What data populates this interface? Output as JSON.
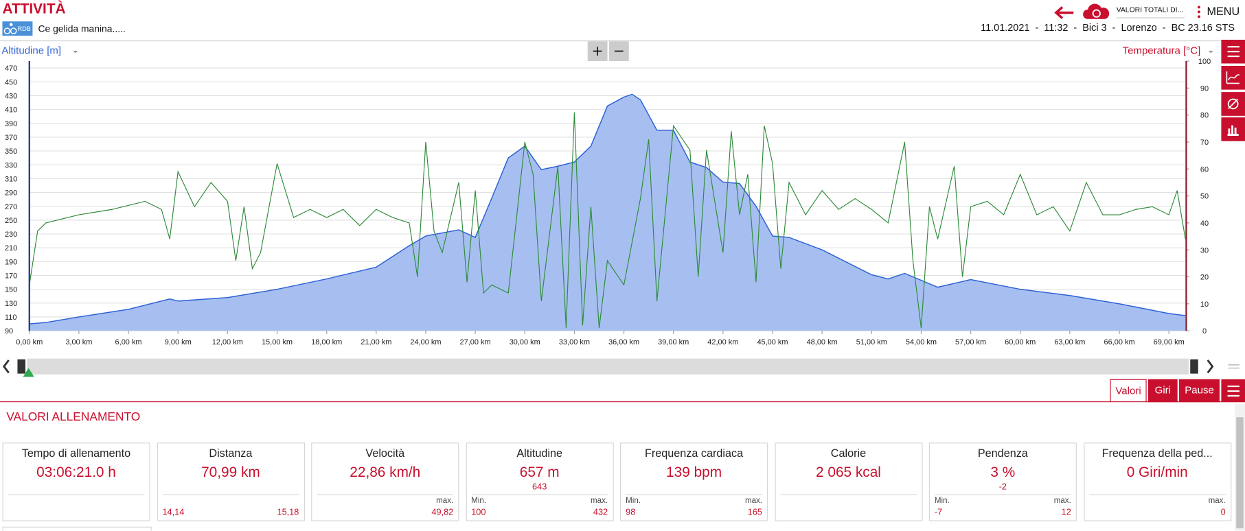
{
  "header": {
    "title": "ATTIVITÀ",
    "badge": "RDB",
    "activity": "Ce gelida manina.....",
    "totals_button": "VALORI TOTALI DI...",
    "menu": "MENU",
    "info": "11.01.2021  -  11:32  -  Bici 3  -  Lorenzo  -  BC 23.16 STS"
  },
  "chart_data": {
    "type": "area",
    "xlim": [
      0,
      70.05
    ],
    "xticks": [
      {
        "value": 0,
        "label": "0,00 km"
      },
      {
        "value": 3,
        "label": "3,00 km"
      },
      {
        "value": 6,
        "label": "6,00 km"
      },
      {
        "value": 9,
        "label": "9,00 km"
      },
      {
        "value": 12,
        "label": "12,00 km"
      },
      {
        "value": 15,
        "label": "15,00 km"
      },
      {
        "value": 18,
        "label": "18,00 km"
      },
      {
        "value": 21,
        "label": "21,00 km"
      },
      {
        "value": 24,
        "label": "24,00 km"
      },
      {
        "value": 27,
        "label": "27,00 km"
      },
      {
        "value": 30,
        "label": "30,00 km"
      },
      {
        "value": 33,
        "label": "33,00 km"
      },
      {
        "value": 36,
        "label": "36,00 km"
      },
      {
        "value": 39,
        "label": "39,00 km"
      },
      {
        "value": 42,
        "label": "42,00 km"
      },
      {
        "value": 45,
        "label": "45,00 km"
      },
      {
        "value": 48,
        "label": "48,00 km"
      },
      {
        "value": 51,
        "label": "51,00 km"
      },
      {
        "value": 54,
        "label": "54,00 km"
      },
      {
        "value": 57,
        "label": "57,00 km"
      },
      {
        "value": 60,
        "label": "60,00 km"
      },
      {
        "value": 63,
        "label": "63,00 km"
      },
      {
        "value": 66,
        "label": "66,00 km"
      },
      {
        "value": 69,
        "label": "69,00 km"
      }
    ],
    "ylim": [
      90,
      480
    ],
    "yticks": [
      90,
      110,
      130,
      150,
      170,
      190,
      210,
      230,
      250,
      270,
      290,
      310,
      330,
      350,
      370,
      390,
      410,
      430,
      450,
      470
    ],
    "y2lim": [
      0,
      100
    ],
    "y2ticks": [
      0,
      10,
      20,
      30,
      40,
      50,
      60,
      70,
      80,
      90,
      100
    ],
    "grid": true,
    "series": [
      {
        "name": "Altitudine [m]",
        "type": "area",
        "color": "#2f62d6",
        "fill": "#a7bff0",
        "x": [
          0,
          1,
          3,
          6,
          8.5,
          9,
          12,
          15,
          18,
          21,
          23,
          24,
          26,
          27,
          28,
          29,
          30,
          31,
          32,
          33,
          34,
          35,
          36,
          36.5,
          37,
          38,
          39,
          40,
          41,
          42,
          43,
          44,
          45,
          46,
          48,
          51,
          52,
          53,
          55,
          57,
          60,
          63,
          66,
          69,
          70
        ],
        "values": [
          100,
          102,
          110,
          121,
          136,
          133,
          138,
          150,
          165,
          182,
          213,
          227,
          236,
          225,
          282,
          340,
          357,
          323,
          328,
          334,
          357,
          415,
          428,
          432,
          424,
          380,
          380,
          334,
          326,
          305,
          303,
          270,
          227,
          225,
          207,
          171,
          165,
          173,
          153,
          164,
          150,
          141,
          129,
          115,
          112
        ]
      },
      {
        "name": "Temperatura [°C]",
        "type": "line",
        "axis": "y2",
        "color": "#2e8b3a",
        "x": [
          0,
          0.5,
          1,
          3,
          5,
          7,
          8,
          8.5,
          9,
          10,
          11,
          12,
          12.5,
          13,
          13.5,
          14,
          15,
          16,
          17,
          18,
          19,
          20,
          21,
          22,
          23,
          23.5,
          24,
          24.5,
          25,
          26,
          26.5,
          27,
          27.5,
          28,
          29,
          30,
          30.5,
          31,
          32,
          32.5,
          33,
          33.5,
          34,
          34.5,
          35,
          36,
          37,
          37.5,
          38,
          39,
          40,
          40.5,
          41,
          42,
          42.5,
          43,
          43.5,
          44,
          44.5,
          45,
          45.5,
          46,
          47,
          48,
          49,
          50,
          51,
          52,
          53,
          53.5,
          54,
          54.5,
          55,
          56,
          56.5,
          57,
          58,
          59,
          60,
          61,
          62,
          63,
          64,
          65,
          66,
          67,
          68,
          69,
          69.5,
          70
        ],
        "values": [
          17,
          37,
          40,
          43,
          45,
          48,
          45,
          34,
          59,
          46,
          55,
          48,
          26,
          46,
          23,
          29,
          62,
          42,
          45,
          42,
          45,
          39,
          45,
          42,
          40,
          20,
          70,
          37,
          29,
          55,
          18,
          52,
          14,
          17,
          14,
          70,
          58,
          11,
          61,
          1,
          81,
          2,
          46,
          1,
          26,
          17,
          49,
          71,
          11,
          76,
          67,
          20,
          67,
          29,
          74,
          43,
          58,
          18,
          76,
          62,
          23,
          55,
          43,
          52,
          45,
          49,
          45,
          40,
          70,
          26,
          1,
          46,
          34,
          61,
          20,
          46,
          48,
          43,
          58,
          43,
          46,
          37,
          55,
          43,
          43,
          45,
          46,
          43,
          52,
          34
        ]
      }
    ]
  },
  "tabs": [
    "Valori",
    "Giri",
    "Pause"
  ],
  "summary": {
    "title": "VALORI ALLENAMENTO",
    "cards": [
      {
        "title": "Tempo di allenamento",
        "value": "03:06:21.0 h"
      },
      {
        "title": "Distanza",
        "value": "70,99 km",
        "left_value": "14,14",
        "right_value": "15,18"
      },
      {
        "title": "Velocità",
        "value": "22,86 km/h",
        "right_label": "max.",
        "right_value": "49,82"
      },
      {
        "title": "Altitudine",
        "value": "657 m",
        "sub": "643",
        "left_label": "Min.",
        "left_value": "100",
        "right_label": "max.",
        "right_value": "432"
      },
      {
        "title": "Frequenza cardiaca",
        "value": "139 bpm",
        "left_label": "Min.",
        "left_value": "98",
        "right_label": "max.",
        "right_value": "165"
      },
      {
        "title": "Calorie",
        "value": "2 065 kcal"
      },
      {
        "title": "Pendenza",
        "value": "3 %",
        "sub": "-2",
        "left_label": "Min.",
        "left_value": "-7",
        "right_label": "max.",
        "right_value": "12"
      },
      {
        "title": "Frequenza della ped...",
        "value": "0 Giri/min",
        "right_label": "max.",
        "right_value": "0"
      }
    ]
  }
}
